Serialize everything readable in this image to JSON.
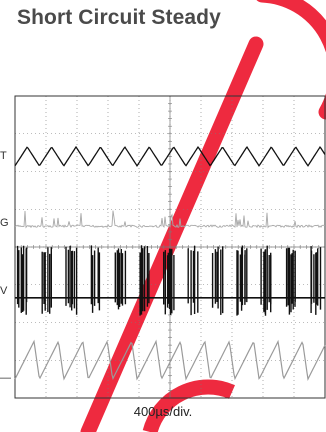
{
  "title": "Short Circuit Steady",
  "chart_data": {
    "type": "line",
    "title": "Short Circuit Steady",
    "xlabel": "400µs/div.",
    "x_divisions": 10,
    "y_divisions": 8,
    "grid": true,
    "series": [
      {
        "cycles": 12.7,
        "amplitude_div": 0.25,
        "center_div": 1.6,
        "color": "#111111"
      },
      {
        "cycles": 0,
        "amplitude_div": 0.06,
        "center_div": 3.45,
        "color": "#a8a8a8"
      },
      {
        "cycles": 12.7,
        "amplitude_div": 0.9,
        "center_div": 4.85,
        "color": "#111111"
      },
      {
        "cycles": 12.7,
        "amplitude_div": 0.5,
        "center_div": 7.0,
        "color": "#9a9a9a"
      }
    ],
    "channel_labels": [
      "T",
      "G",
      "V",
      "—"
    ]
  },
  "colors": {
    "watermark": "#ee2a3f",
    "title": "#4a4a4a",
    "grid": "#7a7a7a"
  }
}
